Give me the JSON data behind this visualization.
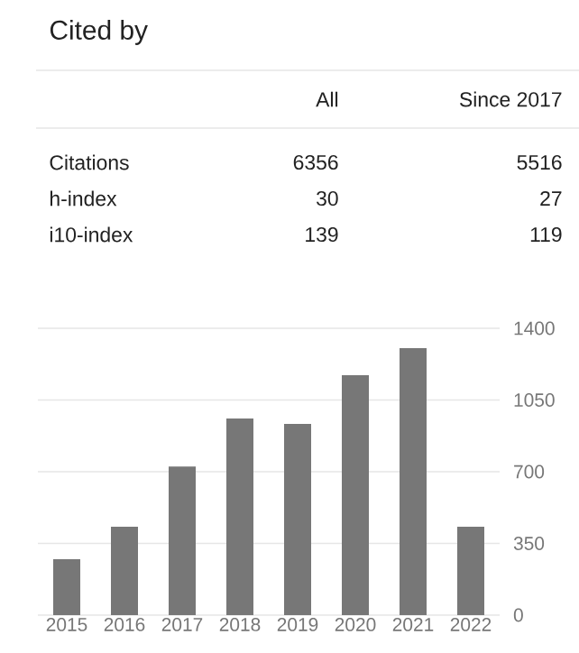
{
  "chart_data": {
    "type": "bar",
    "title": "Cited by",
    "categories": [
      "2015",
      "2016",
      "2017",
      "2018",
      "2019",
      "2020",
      "2021",
      "2022"
    ],
    "values": [
      273,
      431,
      725,
      960,
      933,
      1171,
      1303,
      431
    ],
    "color": "#777777",
    "ylim": [
      0,
      1400
    ],
    "yticks": [
      0,
      350,
      700,
      1050,
      1400
    ],
    "grid": "y",
    "annotations": [
      "All",
      "Since 2017",
      "Citations",
      "6356",
      "5516",
      "h-index",
      "30",
      "27",
      "i10-index",
      "139",
      "119"
    ]
  }
}
